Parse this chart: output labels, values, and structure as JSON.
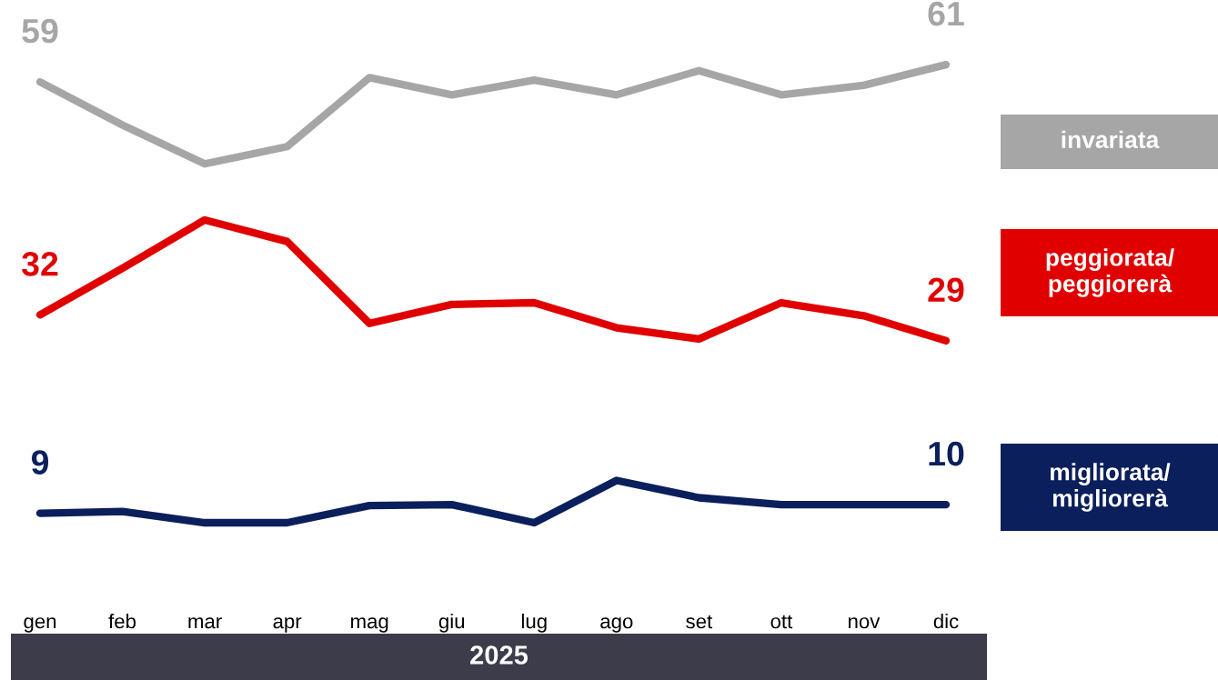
{
  "chart_data": {
    "type": "line",
    "categories": [
      "gen",
      "feb",
      "mar",
      "apr",
      "mag",
      "giu",
      "lug",
      "ago",
      "set",
      "ott",
      "nov",
      "dic"
    ],
    "xlabel": "2025",
    "legend": "right",
    "grid": false,
    "marker": "none",
    "line_style": "solid",
    "series": [
      {
        "name": "invariata",
        "color": "#a6a6a6",
        "values": [
          59,
          54,
          49.5,
          51.5,
          59.5,
          57.5,
          59.2,
          57.5,
          60.3,
          57.5,
          58.6,
          61
        ],
        "value_labels": [
          "59",
          null,
          null,
          null,
          null,
          null,
          null,
          null,
          null,
          null,
          null,
          "61"
        ]
      },
      {
        "name": "peggiorata/\npeggiorerà",
        "color": "#e00000",
        "values": [
          32,
          37.4,
          43,
          40.5,
          31,
          33.2,
          33.4,
          30.5,
          29.2,
          33.4,
          31.9,
          29
        ],
        "value_labels": [
          "32",
          null,
          null,
          null,
          null,
          null,
          null,
          null,
          null,
          null,
          null,
          "29"
        ]
      },
      {
        "name": "migliorata/\nmigliorerà",
        "color": "#0a1f5c",
        "values": [
          9,
          9.2,
          7.9,
          7.9,
          9.9,
          10,
          7.9,
          12.8,
          10.8,
          10,
          10,
          10
        ],
        "value_labels": [
          "9",
          null,
          null,
          null,
          null,
          null,
          null,
          null,
          null,
          null,
          null,
          "10"
        ]
      }
    ]
  }
}
